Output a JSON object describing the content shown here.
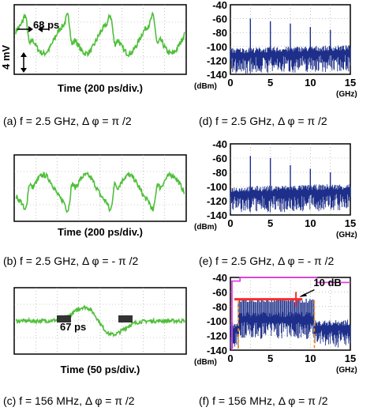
{
  "colors": {
    "trace_green": "#4fbf3a",
    "spectrum_blue": "#1d2f8a",
    "line_magenta": "#e040e0",
    "line_red": "#ff2a2a",
    "line_orange": "#ff8a00",
    "grid": "#9a9a9a"
  },
  "chart_data": [
    {
      "id": "a",
      "type": "line",
      "caption": "(a) f = 2.5 GHz, Δ φ = π /2",
      "xlabel": "Time (200 ps/div.)",
      "ylabel": "4 mV",
      "annotations": [
        "68 ps"
      ],
      "period_divisions": 2
    },
    {
      "id": "b",
      "type": "line",
      "caption": "(b) f = 2.5 GHz, Δ φ = - π /2",
      "xlabel": "Time (200 ps/div.)",
      "period_divisions": 2
    },
    {
      "id": "c",
      "type": "line",
      "caption": "(c) f = 156 MHz, Δ φ = π /2",
      "xlabel": "Time (50 ps/div.)",
      "annotations": [
        "67 ps"
      ],
      "markers": [
        "■",
        "■"
      ]
    },
    {
      "id": "d",
      "type": "line",
      "caption": "(d) f = 2.5 GHz, Δ φ = π /2",
      "xlim": [
        0,
        15
      ],
      "ylim": [
        -140,
        -40
      ],
      "xticks": [
        0,
        5,
        10,
        15
      ],
      "yticks": [
        -40,
        -60,
        -80,
        -100,
        -120,
        -140
      ],
      "xunit": "(GHz)",
      "yunit": "(dBm)",
      "noise_floor": -110,
      "peaks": [
        {
          "x": 2.5,
          "y": -60
        },
        {
          "x": 5,
          "y": -64
        },
        {
          "x": 7.5,
          "y": -67
        },
        {
          "x": 10,
          "y": -72
        },
        {
          "x": 12.5,
          "y": -76
        }
      ]
    },
    {
      "id": "e",
      "type": "line",
      "caption": "(e) f = 2.5 GHz, Δ φ = - π /2",
      "xlim": [
        0,
        15
      ],
      "ylim": [
        -140,
        -40
      ],
      "xticks": [
        0,
        5,
        10,
        15
      ],
      "yticks": [
        -40,
        -60,
        -80,
        -100,
        -120,
        -140
      ],
      "xunit": "(GHz)",
      "yunit": "(dBm)",
      "noise_floor": -108,
      "peaks": [
        {
          "x": 2.5,
          "y": -57
        },
        {
          "x": 5,
          "y": -60
        },
        {
          "x": 7.5,
          "y": -70
        },
        {
          "x": 10,
          "y": -75
        },
        {
          "x": 12.5,
          "y": -80
        }
      ]
    },
    {
      "id": "f",
      "type": "line",
      "caption": "(f) f = 156 MHz, Δ φ = π /2",
      "xlim": [
        0,
        15
      ],
      "ylim": [
        -140,
        -40
      ],
      "xticks": [
        0,
        5,
        10,
        15
      ],
      "yticks": [
        -40,
        -60,
        -80,
        -100,
        -120,
        -140
      ],
      "xunit": "(GHz)",
      "yunit": "(dBm)",
      "noise_floor": -110,
      "comb_level": -72,
      "comb_range": [
        1,
        10.5
      ],
      "magenta_envelope": [
        [
          0.2,
          -140
        ],
        [
          0.2,
          -45
        ],
        [
          1.2,
          -45
        ],
        [
          1.2,
          -40
        ],
        [
          10.8,
          -40
        ],
        [
          10.8,
          -47
        ],
        [
          15,
          -47
        ]
      ],
      "red_level": -70,
      "red_range": [
        0.5,
        9
      ],
      "orange_markers": [
        1,
        10.5
      ],
      "annotation": "10 dB"
    }
  ]
}
